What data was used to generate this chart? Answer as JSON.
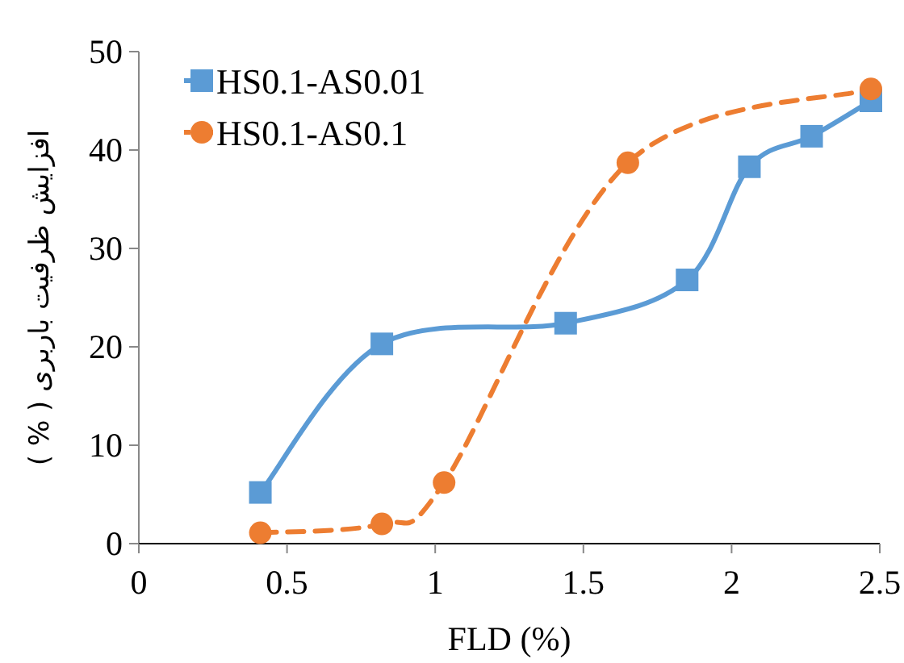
{
  "chart_data": {
    "type": "line",
    "xlabel": "FLD (%)",
    "ylabel": "افزایش ظرفیت باربری ( % )",
    "xlim": [
      0,
      2.5
    ],
    "xticks": [
      0,
      0.5,
      1,
      1.5,
      2,
      2.5
    ],
    "ylim": [
      0,
      50
    ],
    "yticks": [
      0,
      10,
      20,
      30,
      40,
      50
    ],
    "legend": "top left",
    "series": [
      {
        "name": "HS0.1-AS0.01",
        "color": "#5b9bd5",
        "marker": "square",
        "line_style": "solid",
        "x": [
          0.41,
          0.82,
          1.44,
          1.85,
          2.06,
          2.27,
          2.47
        ],
        "values": [
          5.2,
          20.3,
          22.4,
          26.8,
          38.3,
          41.4,
          45.0
        ]
      },
      {
        "name": "HS0.1-AS0.1",
        "color": "#ed7d31",
        "marker": "circle",
        "line_style": "dashed",
        "x": [
          0.41,
          0.82,
          1.03,
          1.65,
          2.47
        ],
        "values": [
          1.1,
          2.0,
          6.2,
          38.7,
          46.2
        ]
      }
    ]
  }
}
